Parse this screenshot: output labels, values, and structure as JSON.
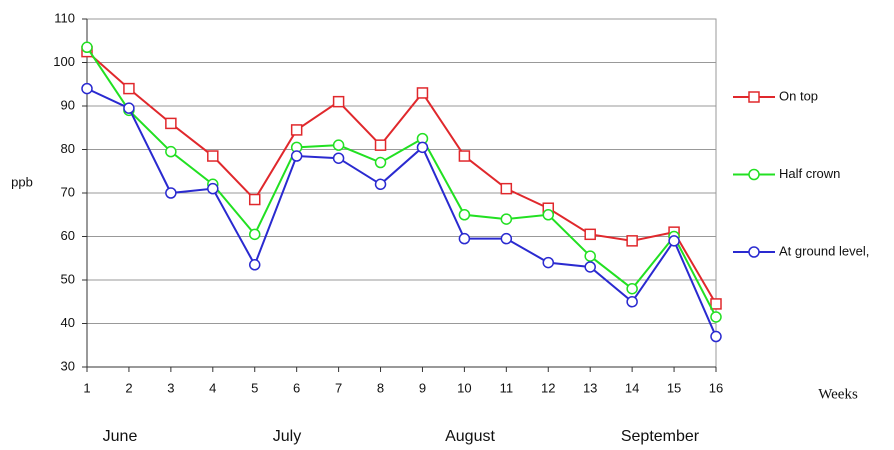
{
  "chart_data": {
    "type": "line",
    "x": [
      1,
      2,
      3,
      4,
      5,
      6,
      7,
      8,
      9,
      10,
      11,
      12,
      13,
      14,
      15,
      16
    ],
    "xlim": [
      1,
      16
    ],
    "xticks": [
      1,
      2,
      3,
      4,
      5,
      6,
      7,
      8,
      9,
      10,
      11,
      12,
      13,
      14,
      15,
      16
    ],
    "ylim": [
      30,
      110
    ],
    "yticks": [
      30,
      40,
      50,
      60,
      70,
      80,
      90,
      100,
      110
    ],
    "grid": true,
    "legend": "right",
    "x_label": "Weeks",
    "y_label": "ppb",
    "annotations": [
      "June",
      "July",
      "August",
      "September"
    ],
    "series": [
      {
        "name": "On top",
        "color": "#e0282c",
        "marker": "square",
        "values": [
          102.5,
          94,
          86,
          78.5,
          68.5,
          84.5,
          91,
          81,
          93,
          78.5,
          71,
          66.5,
          60.5,
          59,
          61,
          44.5
        ]
      },
      {
        "name": "Half crown",
        "color": "#22e022",
        "marker": "circle",
        "values": [
          103.5,
          89,
          79.5,
          72,
          60.5,
          80.5,
          81,
          77,
          82.5,
          65,
          64,
          65,
          55.5,
          48,
          60,
          41.5
        ]
      },
      {
        "name": "At ground level,",
        "color": "#2a2ad0",
        "marker": "circle",
        "values": [
          94,
          89.5,
          70,
          71,
          53.5,
          78.5,
          78,
          72,
          80.5,
          59.5,
          59.5,
          54,
          53,
          45,
          59,
          37
        ]
      }
    ]
  }
}
